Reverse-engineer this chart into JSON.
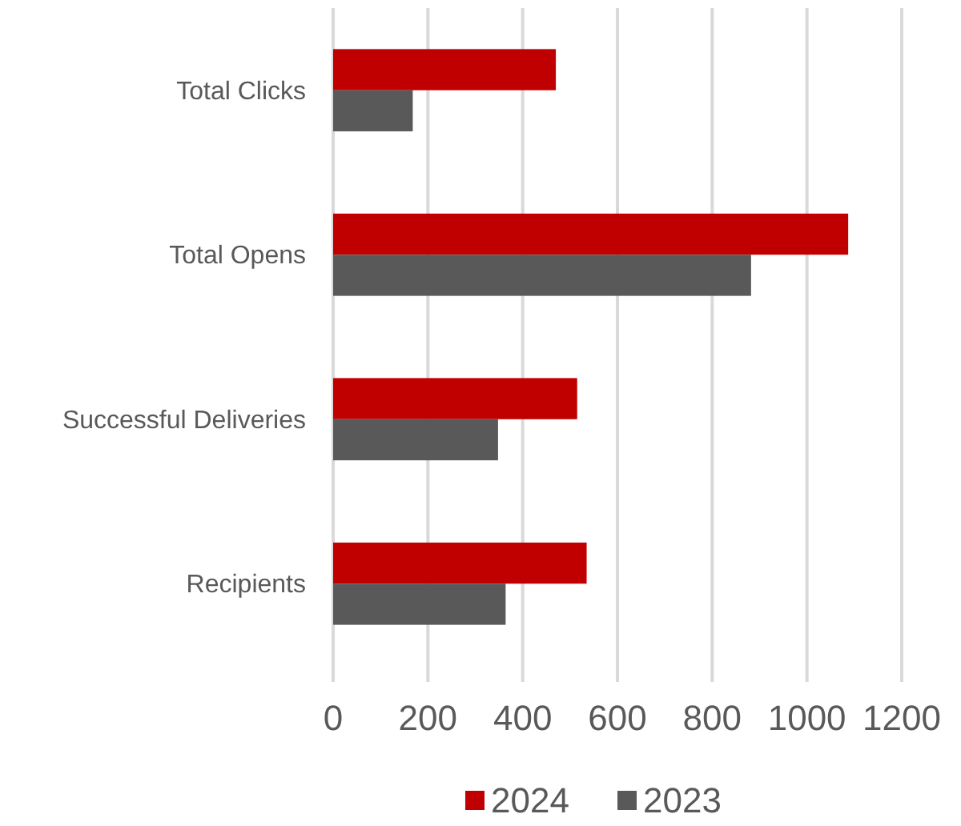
{
  "chart_data": {
    "type": "bar",
    "orientation": "horizontal",
    "categories": [
      "Total Clicks",
      "Total Opens",
      "Successful Deliveries",
      "Recipients"
    ],
    "series": [
      {
        "name": "2024",
        "color": "#c00000",
        "values": [
          470,
          1087,
          515,
          535
        ]
      },
      {
        "name": "2023",
        "color": "#595959",
        "values": [
          168,
          882,
          348,
          364
        ]
      }
    ],
    "xlim": [
      0,
      1200
    ],
    "xticks": [
      0,
      200,
      400,
      600,
      800,
      1000,
      1200
    ],
    "grid": "x",
    "legend": "bottom"
  }
}
